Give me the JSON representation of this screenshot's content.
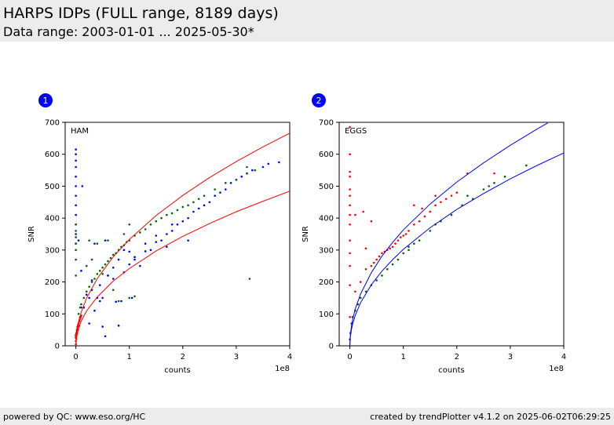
{
  "header": {
    "title": "HARPS IDPs (FULL range, 8189 days)",
    "subtitle": "Data range: 2003-01-01 ... 2025-05-30*"
  },
  "footer": {
    "left": "powered by QC: www.eso.org/HC",
    "right": "created by trendPlotter v4.1.2 on 2025-06-02T06:29:25"
  },
  "colors": {
    "red": "#ff0000",
    "blue": "#0000ff",
    "green": "#006400",
    "badge": "#0000ff"
  },
  "chart_data": [
    {
      "type": "scatter",
      "badge": "1",
      "panel_label": "HAM",
      "xlabel": "counts",
      "ylabel": "SNR",
      "x_multiplier": "1e8",
      "xlim": [
        -0.2,
        4.0
      ],
      "ylim": [
        0,
        700
      ],
      "xticks": [
        "0",
        "1",
        "2",
        "3",
        "4"
      ],
      "yticks": [
        "0",
        "100",
        "200",
        "300",
        "400",
        "500",
        "600",
        "700"
      ],
      "envelope_color": "red",
      "envelope": [
        {
          "x": [
            0,
            0.01,
            0.05,
            0.1,
            0.2,
            0.4,
            0.7,
            1.0,
            1.5,
            2.0,
            2.5,
            3.0,
            3.5,
            4.0
          ],
          "y": [
            0,
            33,
            74,
            105,
            149,
            211,
            279,
            333,
            408,
            471,
            527,
            577,
            623,
            666
          ]
        },
        {
          "x": [
            0,
            0.01,
            0.05,
            0.1,
            0.2,
            0.4,
            0.7,
            1.0,
            1.5,
            2.0,
            2.5,
            3.0,
            3.5,
            4.0
          ],
          "y": [
            0,
            24,
            54,
            77,
            109,
            153,
            203,
            242,
            297,
            343,
            383,
            420,
            453,
            484
          ]
        }
      ],
      "series": [
        {
          "color": "blue",
          "x": [
            0.0,
            0.0,
            0.0,
            0.0,
            0.0,
            0.0,
            0.0,
            0.0,
            0.0,
            0.0,
            0.0,
            0.0,
            0.05,
            0.1,
            0.12,
            0.2,
            0.25,
            0.3,
            0.35,
            0.4,
            0.45,
            0.5,
            0.55,
            0.6,
            0.7,
            0.75,
            0.8,
            0.85,
            0.9,
            1.0,
            1.05,
            1.1,
            1.2,
            1.3,
            1.4,
            1.5,
            1.6,
            1.7,
            1.8,
            1.9,
            2.0,
            2.1,
            2.2,
            2.3,
            2.4,
            2.5,
            2.6,
            2.7,
            2.8,
            2.9,
            3.0,
            3.1,
            3.2,
            3.3,
            3.5,
            3.6,
            3.8,
            0.15,
            0.3,
            0.45,
            0.5,
            0.6,
            0.9,
            1.0,
            1.1,
            1.3,
            1.5,
            1.8,
            0.8,
            0.55,
            0.35,
            2.1,
            1.7,
            0.7,
            0.08,
            0.1,
            0.25
          ],
          "y": [
            615,
            600,
            580,
            560,
            530,
            500,
            470,
            440,
            410,
            380,
            350,
            320,
            330,
            235,
            500,
            160,
            150,
            175,
            110,
            150,
            140,
            150,
            30,
            220,
            245,
            138,
            270,
            140,
            300,
            295,
            150,
            278,
            250,
            296,
            300,
            325,
            330,
            350,
            360,
            380,
            390,
            400,
            420,
            430,
            440,
            450,
            470,
            480,
            490,
            510,
            520,
            530,
            540,
            550,
            560,
            570,
            575,
            120,
            205,
            190,
            60,
            220,
            230,
            255,
            270,
            320,
            345,
            380,
            63,
            330,
            320,
            330,
            310,
            210,
            90,
            120,
            70
          ]
        },
        {
          "color": "green",
          "x": [
            0.0,
            0.0,
            0.0,
            0.0,
            0.0,
            0.0,
            0.0,
            0.05,
            0.08,
            0.1,
            0.15,
            0.2,
            0.25,
            0.3,
            0.35,
            0.4,
            0.45,
            0.5,
            0.55,
            0.6,
            0.65,
            0.7,
            0.75,
            0.8,
            0.85,
            0.9,
            0.95,
            1.0,
            1.1,
            1.2,
            1.3,
            1.4,
            1.5,
            1.6,
            1.7,
            1.8,
            1.9,
            2.0,
            2.1,
            2.2,
            2.3,
            2.4,
            2.6,
            2.8,
            3.0,
            3.2,
            3.35,
            3.2,
            0.4,
            0.3,
            0.6,
            1.0,
            0.25,
            0.5,
            0.8,
            0.2,
            0.9,
            1.1,
            1.0,
            0.7,
            3.25
          ],
          "y": [
            380,
            360,
            340,
            320,
            300,
            270,
            220,
            100,
            120,
            130,
            150,
            170,
            185,
            200,
            210,
            225,
            235,
            245,
            255,
            265,
            275,
            285,
            290,
            300,
            310,
            315,
            325,
            330,
            345,
            355,
            365,
            380,
            390,
            400,
            410,
            415,
            425,
            435,
            440,
            450,
            460,
            470,
            490,
            510,
            520,
            540,
            550,
            560,
            320,
            270,
            330,
            380,
            330,
            225,
            140,
            250,
            350,
            155,
            150,
            175,
            210
          ]
        },
        {
          "color": "red",
          "x": [
            0.0,
            0.0,
            0.0,
            0.0,
            0.01,
            0.01,
            0.02,
            0.02,
            0.03,
            0.03,
            0.04,
            0.05,
            0.06,
            0.07,
            0.08,
            0.09,
            0.1,
            0.0,
            0.0,
            0.01,
            0.02,
            0.04,
            0.06
          ],
          "y": [
            5,
            15,
            25,
            35,
            30,
            40,
            45,
            50,
            55,
            60,
            65,
            70,
            75,
            80,
            85,
            90,
            95,
            28,
            33,
            22,
            38,
            52,
            62
          ]
        }
      ]
    },
    {
      "type": "scatter",
      "badge": "2",
      "panel_label": "EGGS",
      "xlabel": "counts",
      "ylabel": "SNR",
      "x_multiplier": "1e8",
      "xlim": [
        -0.2,
        4.0
      ],
      "ylim": [
        0,
        700
      ],
      "xticks": [
        "0",
        "1",
        "2",
        "3",
        "4"
      ],
      "yticks": [
        "0",
        "100",
        "200",
        "300",
        "400",
        "500",
        "600",
        "700"
      ],
      "envelope_color": "blue",
      "envelope": [
        {
          "x": [
            0,
            0.005,
            0.01,
            0.03,
            0.05,
            0.1,
            0.2,
            0.4,
            0.6,
            0.8,
            1.0,
            1.5,
            2.0,
            2.5,
            3.0,
            3.5,
            3.7
          ],
          "y": [
            0,
            26,
            36,
            63,
            81,
            115,
            162,
            229,
            281,
            324,
            363,
            444,
            513,
            573,
            628,
            679,
            698
          ]
        },
        {
          "x": [
            0,
            0.005,
            0.01,
            0.03,
            0.05,
            0.1,
            0.2,
            0.4,
            0.6,
            0.8,
            1.0,
            1.5,
            2.0,
            2.5,
            3.0,
            3.5,
            4.0
          ],
          "y": [
            0,
            21,
            30,
            52,
            67,
            95,
            135,
            191,
            234,
            270,
            302,
            370,
            427,
            477,
            523,
            565,
            604
          ]
        }
      ],
      "series": [
        {
          "color": "red",
          "x": [
            0.0,
            0.0,
            0.0,
            0.0,
            0.0,
            0.0,
            0.0,
            0.0,
            0.0,
            0.0,
            0.0,
            0.0,
            0.0,
            0.0,
            0.1,
            0.1,
            0.2,
            0.3,
            0.4,
            0.45,
            0.5,
            0.55,
            0.6,
            0.65,
            0.7,
            0.75,
            0.8,
            0.85,
            0.9,
            0.95,
            1.0,
            1.05,
            1.1,
            1.2,
            1.3,
            1.4,
            1.5,
            1.6,
            1.7,
            1.8,
            1.9,
            2.0,
            1.2,
            1.6,
            2.2,
            2.7,
            0.25,
            0.4,
            0.3,
            1.35
          ],
          "y": [
            685,
            600,
            545,
            530,
            490,
            470,
            440,
            410,
            380,
            330,
            290,
            250,
            190,
            90,
            410,
            170,
            200,
            240,
            250,
            260,
            270,
            280,
            290,
            295,
            300,
            305,
            310,
            320,
            330,
            340,
            345,
            350,
            360,
            380,
            390,
            405,
            420,
            440,
            450,
            460,
            470,
            480,
            440,
            470,
            540,
            540,
            420,
            390,
            305,
            430
          ]
        },
        {
          "color": "green",
          "x": [
            0.0,
            0.01,
            0.03,
            0.05,
            0.1,
            0.15,
            0.2,
            0.3,
            0.4,
            0.5,
            0.6,
            0.7,
            0.8,
            0.9,
            1.0,
            1.1,
            1.2,
            1.3,
            1.5,
            1.7,
            1.9,
            2.1,
            2.3,
            2.5,
            2.7,
            2.9,
            3.3,
            1.1,
            1.6,
            2.2,
            2.6
          ],
          "y": [
            20,
            40,
            70,
            90,
            110,
            130,
            150,
            170,
            190,
            205,
            220,
            240,
            255,
            270,
            290,
            300,
            320,
            330,
            360,
            390,
            410,
            440,
            460,
            490,
            510,
            530,
            565,
            310,
            380,
            470,
            500
          ]
        }
      ]
    }
  ]
}
